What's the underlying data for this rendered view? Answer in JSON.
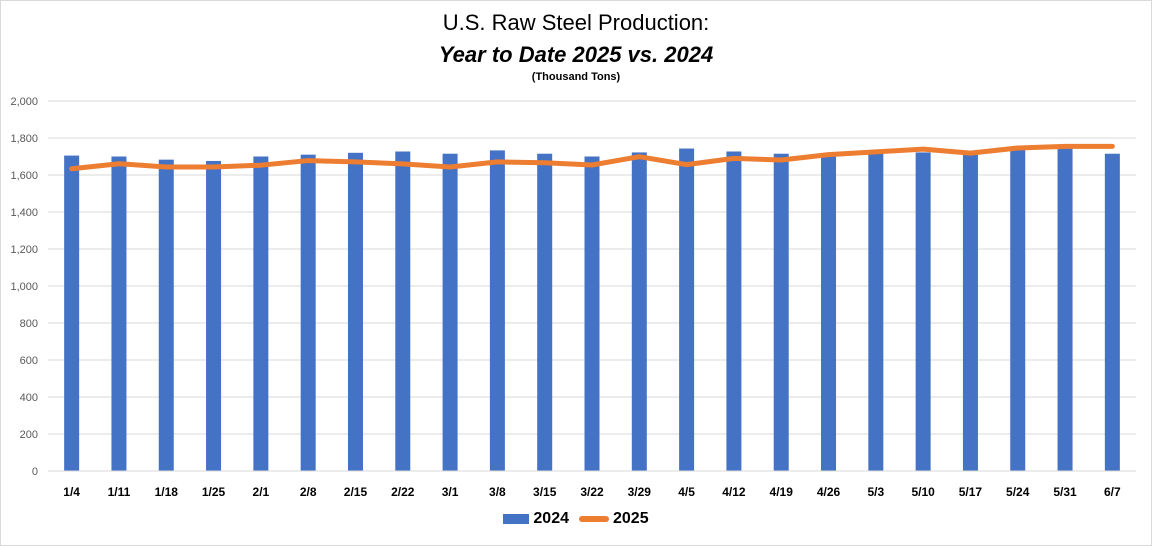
{
  "chart_data": {
    "type": "bar",
    "title": "U.S. Raw Steel Production:",
    "subtitle": "Year to Date 2025 vs. 2024",
    "units_note": "(Thousand Tons)",
    "categories": [
      "1/4",
      "1/11",
      "1/18",
      "1/25",
      "2/1",
      "2/8",
      "2/15",
      "2/22",
      "3/1",
      "3/8",
      "3/15",
      "3/22",
      "3/29",
      "4/5",
      "4/12",
      "4/19",
      "4/26",
      "5/3",
      "5/10",
      "5/17",
      "5/24",
      "5/31",
      "6/7"
    ],
    "ylim": [
      0,
      2000
    ],
    "yticks": [
      0,
      200,
      400,
      600,
      800,
      1000,
      1200,
      1400,
      1600,
      1800,
      2000
    ],
    "grid": true,
    "legend_position": "bottom",
    "series": [
      {
        "name": "2024",
        "type": "bar",
        "color": "#4472c4",
        "values": [
          1705,
          1700,
          1683,
          1676,
          1700,
          1710,
          1720,
          1727,
          1715,
          1733,
          1715,
          1700,
          1722,
          1743,
          1727,
          1715,
          1705,
          1727,
          1722,
          1720,
          1740,
          1750,
          1715
        ]
      },
      {
        "name": "2025",
        "type": "line",
        "color": "#ed7d31",
        "values": [
          1634,
          1661,
          1643,
          1643,
          1653,
          1678,
          1671,
          1660,
          1643,
          1671,
          1666,
          1654,
          1699,
          1656,
          1690,
          1681,
          1710,
          1725,
          1740,
          1718,
          1746,
          1755,
          1755
        ]
      }
    ]
  }
}
